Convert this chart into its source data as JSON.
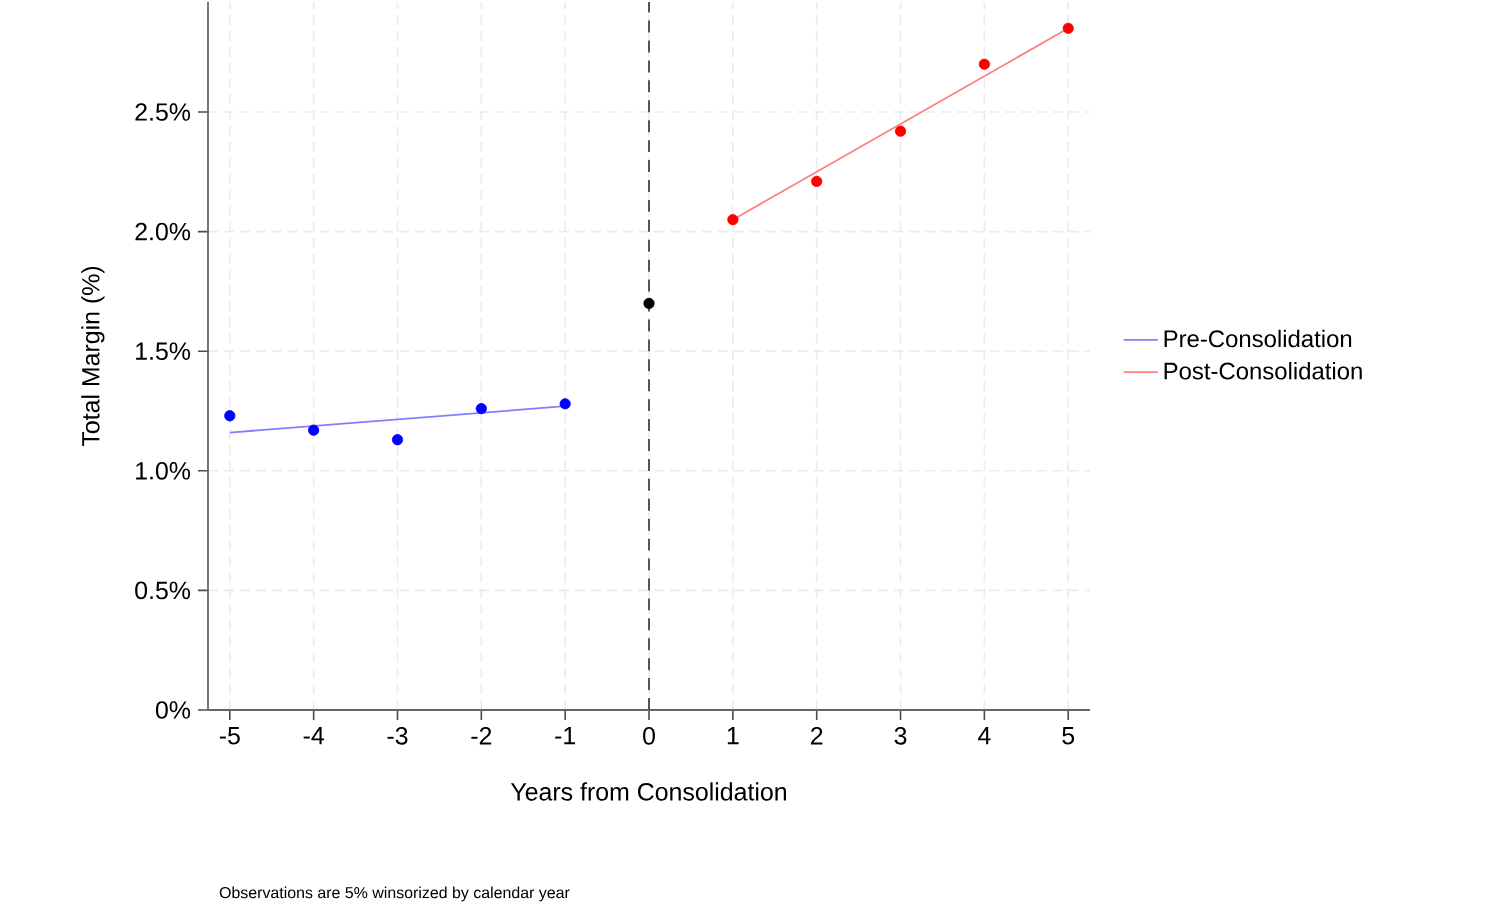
{
  "chart_data": {
    "type": "scatter",
    "xlabel": "Years from Consolidation",
    "ylabel": "Total Margin (%)",
    "annotations": [
      "Observations are 5% winsorized by calendar year"
    ],
    "xlim": [
      -5.26,
      5.26
    ],
    "xticks": [
      -5,
      -4,
      -3,
      -2,
      -1,
      0,
      1,
      2,
      3,
      4,
      5
    ],
    "ylim": [
      0,
      2.96
    ],
    "yticks": [
      {
        "value": 0,
        "label": "0%"
      },
      {
        "value": 0.5,
        "label": "0.5%"
      },
      {
        "value": 1.0,
        "label": "1.0%"
      },
      {
        "value": 1.5,
        "label": "1.5%"
      },
      {
        "value": 2.0,
        "label": "2.0%"
      },
      {
        "value": 2.5,
        "label": "2.5%"
      }
    ],
    "grid": true,
    "legend": "right",
    "marker": "circle",
    "ref_lines": [
      {
        "axis": "x",
        "value": 0,
        "color": "#555555",
        "line_style": "dashed"
      }
    ],
    "series": [
      {
        "color": "#0000ff",
        "x": [
          -5,
          -4,
          -3,
          -2,
          -1
        ],
        "values": [
          1.23,
          1.17,
          1.13,
          1.26,
          1.28
        ]
      },
      {
        "type": "line",
        "name": "Pre-Consolidation",
        "color": "#8080ff",
        "marker": "none",
        "x": [
          -5,
          -1
        ],
        "values": [
          1.16,
          1.27
        ]
      },
      {
        "color": "#000000",
        "x": [
          0
        ],
        "values": [
          1.7
        ]
      },
      {
        "color": "#ff0000",
        "x": [
          1,
          2,
          3,
          4,
          5
        ],
        "values": [
          2.05,
          2.21,
          2.42,
          2.7,
          2.85
        ]
      },
      {
        "type": "line",
        "name": "Post-Consolidation",
        "color": "#ff8080",
        "marker": "none",
        "x": [
          1,
          5
        ],
        "values": [
          2.05,
          2.85
        ]
      }
    ]
  }
}
